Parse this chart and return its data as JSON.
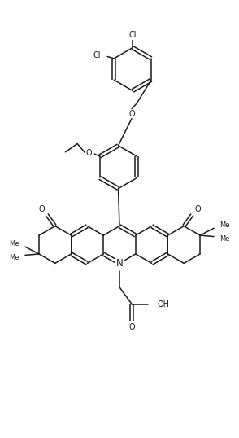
{
  "fig_w": 2.94,
  "fig_h": 5.38,
  "dpi": 100,
  "bg": "#ffffff",
  "lc": "#1a1a1a",
  "lw": 1.1,
  "fs": 7.0,
  "xlim": [
    0,
    10
  ],
  "ylim": [
    0,
    18.35
  ]
}
